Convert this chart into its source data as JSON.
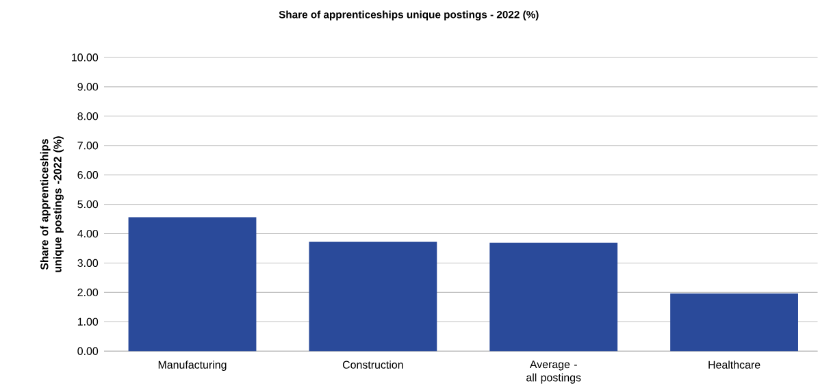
{
  "chart_data": {
    "type": "bar",
    "title": "Share of apprenticeships unique postings - 2022 (%)",
    "ylabel": "Share of apprenticeships unique postings -2022 (%)",
    "categories": [
      "Manufacturing",
      "Construction",
      "Average - all postings",
      "Healthcare"
    ],
    "values": [
      4.56,
      3.72,
      3.69,
      1.96
    ],
    "color": "#2a4a9a",
    "ylim": [
      0,
      10
    ],
    "yticks": [
      {
        "value": 0,
        "label": "0.00"
      },
      {
        "value": 1,
        "label": "1.00"
      },
      {
        "value": 2,
        "label": "2.00"
      },
      {
        "value": 3,
        "label": "3.00"
      },
      {
        "value": 4,
        "label": "4.00"
      },
      {
        "value": 5,
        "label": "5.00"
      },
      {
        "value": 6,
        "label": "6.00"
      },
      {
        "value": 7,
        "label": "7.00"
      },
      {
        "value": 8,
        "label": "8.00"
      },
      {
        "value": 9,
        "label": "9.00"
      },
      {
        "value": 10,
        "label": "10.00"
      }
    ],
    "grid": "y"
  }
}
